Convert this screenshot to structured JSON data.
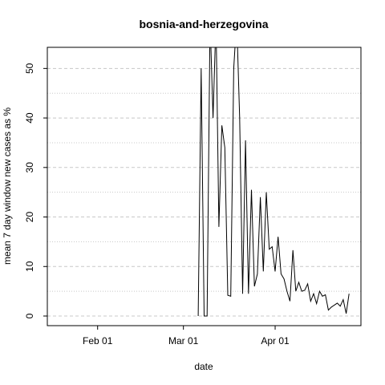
{
  "chart_data": {
    "type": "line",
    "title": "bosnia-and-herzegovina",
    "xlabel": "date",
    "ylabel": "mean  7  day window new cases as %",
    "ylim": [
      0,
      52
    ],
    "xlim": [
      "2020-01-15",
      "2020-04-30"
    ],
    "x_ticks": [
      {
        "date": "2020-02-01",
        "label": "Feb 01"
      },
      {
        "date": "2020-03-01",
        "label": "Mar 01"
      },
      {
        "date": "2020-04-01",
        "label": "Apr 01"
      }
    ],
    "y_ticks": [
      0,
      10,
      20,
      30,
      40,
      50
    ],
    "grid": {
      "major_dashed": true,
      "minor_dotted": true
    },
    "color": "#000000",
    "series": [
      {
        "x": [
          "2020-03-06",
          "2020-03-07",
          "2020-03-08",
          "2020-03-09",
          "2020-03-10",
          "2020-03-11",
          "2020-03-12",
          "2020-03-13",
          "2020-03-14",
          "2020-03-15",
          "2020-03-16",
          "2020-03-17",
          "2020-03-18",
          "2020-03-19",
          "2020-03-20",
          "2020-03-21",
          "2020-03-22",
          "2020-03-23",
          "2020-03-24",
          "2020-03-25",
          "2020-03-26",
          "2020-03-27",
          "2020-03-28",
          "2020-03-29",
          "2020-03-30",
          "2020-03-31",
          "2020-04-01",
          "2020-04-02",
          "2020-04-03",
          "2020-04-04",
          "2020-04-05",
          "2020-04-06",
          "2020-04-07",
          "2020-04-08",
          "2020-04-09",
          "2020-04-10",
          "2020-04-11",
          "2020-04-12",
          "2020-04-13",
          "2020-04-14",
          "2020-04-15",
          "2020-04-16",
          "2020-04-17",
          "2020-04-18",
          "2020-04-19",
          "2020-04-20",
          "2020-04-21",
          "2020-04-22",
          "2020-04-23",
          "2020-04-24",
          "2020-04-25",
          "2020-04-26",
          "2020-04-27"
        ],
        "values": [
          0,
          50,
          0,
          0,
          60,
          40,
          60,
          18,
          38.5,
          34,
          4.2,
          4,
          50,
          60,
          40,
          4.5,
          35.5,
          4.5,
          25.5,
          6,
          8.5,
          24,
          9,
          25,
          13.5,
          14,
          9,
          16,
          8.5,
          7.5,
          5,
          3,
          13.3,
          5,
          6.8,
          5,
          5.2,
          6.5,
          3,
          4.5,
          2.5,
          5,
          4,
          4.3,
          1.2,
          1.8,
          2.2,
          2.6,
          2,
          3.3,
          0.5,
          4.5,
          null
        ]
      }
    ]
  }
}
